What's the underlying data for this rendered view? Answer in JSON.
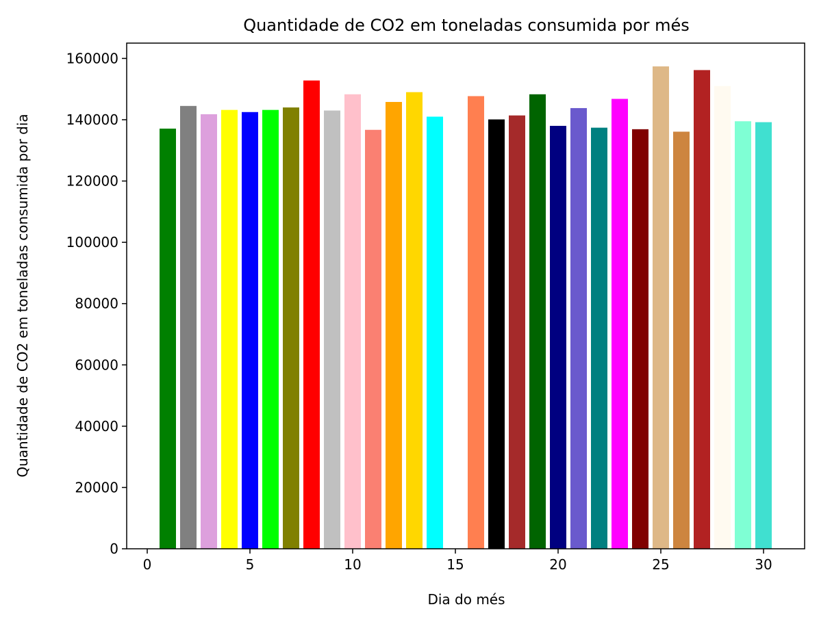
{
  "chart_data": {
    "type": "bar",
    "title": "Quantidade de CO2 em toneladas consumida por més",
    "xlabel": "Dia do més",
    "ylabel": "Quantidade de CO2 em toneladas consumida por dia",
    "xlim": [
      -1,
      32
    ],
    "ylim": [
      0,
      165000
    ],
    "xticks": [
      0,
      5,
      10,
      15,
      20,
      25,
      30
    ],
    "yticks": [
      0,
      20000,
      40000,
      60000,
      80000,
      100000,
      120000,
      140000,
      160000
    ],
    "grid": false,
    "x": [
      1,
      2,
      3,
      4,
      5,
      6,
      7,
      8,
      9,
      10,
      11,
      12,
      13,
      14,
      15,
      16,
      17,
      18,
      19,
      20,
      21,
      22,
      23,
      24,
      25,
      26,
      27,
      28,
      29,
      30
    ],
    "values": [
      137100,
      144500,
      141800,
      143200,
      142500,
      143200,
      144000,
      152800,
      143000,
      148300,
      136700,
      145800,
      149000,
      141000,
      0,
      147700,
      140100,
      141400,
      148300,
      138000,
      143800,
      137400,
      146800,
      136900,
      157400,
      136100,
      156200,
      151000,
      139500,
      139200
    ],
    "colors": [
      "#008000",
      "#808080",
      "#DDA0DD",
      "#FFFF00",
      "#0000FF",
      "#00FF00",
      "#808000",
      "#FF0000",
      "#C0C0C0",
      "#FFC0CB",
      "#FA8072",
      "#FFA500",
      "#FFD700",
      "#00FFFF",
      "#FFFFFF",
      "#FF7F50",
      "#000000",
      "#A52A2A",
      "#006400",
      "#000080",
      "#6A5ACD",
      "#008080",
      "#FF00FF",
      "#800000",
      "#DEB887",
      "#CD853F",
      "#B22222",
      "#FFFAF0",
      "#7FFFD4",
      "#40E0D0"
    ]
  }
}
